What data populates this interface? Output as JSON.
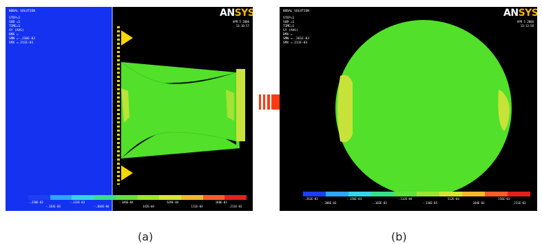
{
  "panel_a": {
    "title": "NODAL SOLUTION",
    "info_lines": [
      "STEP=1",
      "SUB =1",
      "TIME=1",
      "SY (AVG)",
      "DMX =",
      "SMN =-.230E-03",
      "SMX =.211E-03"
    ],
    "brand": "ANSYS",
    "meta_lines": [
      "APR 5 2006",
      "13:10:57"
    ],
    "colorbar_labels_top": [
      "-.230E-03",
      "-.181E-03",
      "-.132E-03",
      "-.834E-04",
      "-.346E-04",
      "142E-04",
      "629E-04",
      "111E-03",
      "160E-03",
      ".211E-03"
    ],
    "colorbar_colors": [
      "#1f3df2",
      "#2ea6ff",
      "#33d6e6",
      "#35e08a",
      "#5fe33a",
      "#9ce62f",
      "#d6e630",
      "#f2b92a",
      "#ff5c2a",
      "#e61e1e"
    ],
    "caption": "(a)"
  },
  "panel_b": {
    "title": "NODAL SOLUTION",
    "info_lines": [
      "STEP=1",
      "SUB =1",
      "TIME=1",
      "SY (AVG)",
      "DMX =",
      "SMN =-.261E-03",
      "SMX =.211E-03"
    ],
    "brand": "ANSYS",
    "meta_lines": [
      "APR 5 2006",
      "13:13:50"
    ],
    "colorbar_labels_top": [
      "-.261E-03",
      "-.208E-03",
      "-.156E-03",
      "-.103E-03",
      "-.512E-04",
      "-.136E-05",
      "512E-04",
      "104E-03",
      "156E-03",
      ".211E-03"
    ],
    "colorbar_colors": [
      "#1f3df2",
      "#2ea6ff",
      "#33d6e6",
      "#35e08a",
      "#5fe33a",
      "#9ce62f",
      "#d6e630",
      "#f2b92a",
      "#ff5c2a",
      "#e61e1e"
    ],
    "caption": "(b)"
  },
  "colors": {
    "model_green": "#52e02a",
    "model_yellow": "#c7e33a",
    "wall_blue": "#1432f0",
    "support_yellow": "#f5d800",
    "arrow_red": "#ff3a12"
  }
}
